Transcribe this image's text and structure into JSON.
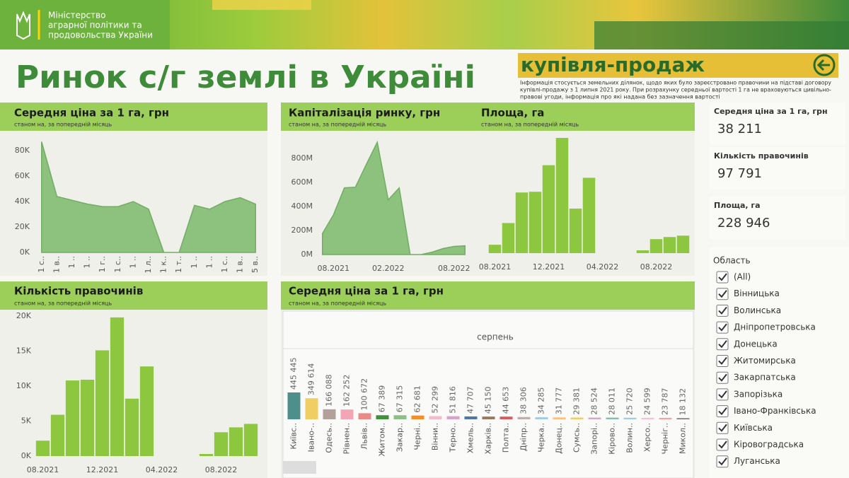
{
  "header": {
    "ministry": [
      "Міністерство",
      "аграрної політики та",
      "продовольства України"
    ],
    "title": "Ринок с/г землі в Україні"
  },
  "info": {
    "title": "купівля-продаж",
    "lines": [
      "Інформація стосується земельних ділянок, щодо яких було зареєстровано правочини на підставі договору",
      "купівлі-продажу з 1 липня 2021 року. При розрахунку середньої вартості 1 га не враховуються цивільно-",
      "правові угоди, інформація про які надана без зазначення вартості"
    ]
  },
  "chart_data": [
    {
      "type": "area",
      "title": "Середня ціна за 1 га, грн",
      "subtitle": "станом на, за попередній місяць",
      "categories": [
        "1 с..",
        "1 в..",
        "1 ..",
        "1 ..",
        "1 г..",
        "1 с..",
        "1 ..",
        "1 л..",
        "1 к..",
        "1 т..",
        "1 ..",
        "1 ..",
        "1 с..",
        "1 в..",
        "5 в.."
      ],
      "values": [
        87000,
        44000,
        41000,
        38000,
        36000,
        36000,
        40000,
        34000,
        0,
        0,
        37000,
        34000,
        40000,
        43000,
        38000
      ],
      "color": "#8cc17e",
      "ylim": [
        0,
        90000
      ],
      "yticks": [
        {
          "value": 0,
          "label": "0K"
        },
        {
          "value": 20000,
          "label": "20K"
        },
        {
          "value": 40000,
          "label": "40K"
        },
        {
          "value": 60000,
          "label": "60K"
        },
        {
          "value": 80000,
          "label": "80K"
        }
      ]
    },
    {
      "type": "area",
      "title": "Капіталізація ринку, грн",
      "subtitle": "станом на, за попередній місяць",
      "categories": [
        null,
        "08.2021",
        null,
        null,
        null,
        null,
        "02.2022",
        null,
        null,
        null,
        null,
        null,
        "08.2022",
        null
      ],
      "values": [
        175000000,
        330000000,
        555000000,
        560000000,
        750000000,
        935000000,
        455000000,
        555000000,
        0,
        0,
        20000000,
        50000000,
        68000000,
        73000000
      ],
      "color": "#8cc17e",
      "ylim": [
        0,
        1000000000
      ],
      "yticks": [
        {
          "value": 0,
          "label": "0M"
        },
        {
          "value": 200000000,
          "label": "200M"
        },
        {
          "value": 400000000,
          "label": "400M"
        },
        {
          "value": 600000000,
          "label": "600M"
        },
        {
          "value": 800000000,
          "label": "800M"
        }
      ]
    },
    {
      "type": "bar",
      "title": "Площа, га",
      "subtitle": "станом на, за попередній місяць",
      "categories": [
        "08.2021",
        null,
        null,
        null,
        "12.2021",
        null,
        null,
        null,
        "04.2022",
        null,
        null,
        null,
        "08.2022",
        null,
        null
      ],
      "values": [
        3600,
        12900,
        26000,
        26300,
        37700,
        49400,
        19100,
        32300,
        null,
        null,
        null,
        1200,
        6000,
        6900,
        7500
      ],
      "color": "#8dc63f"
    },
    {
      "type": "bar",
      "title": "Кількість правочинів",
      "subtitle": "станом на, за попередній місяць",
      "categories": [
        "08.2021",
        null,
        null,
        null,
        "12.2021",
        null,
        null,
        null,
        "04.2022",
        null,
        null,
        null,
        "08.2022",
        null,
        null
      ],
      "values": [
        2200,
        5900,
        10800,
        10900,
        15100,
        19800,
        8200,
        12800,
        null,
        null,
        null,
        300,
        3400,
        4100,
        4600
      ],
      "color": "#8dc63f",
      "ylim": [
        0,
        21000
      ],
      "yticks": [
        {
          "value": 0,
          "label": "0K"
        },
        {
          "value": 5000,
          "label": "5K"
        },
        {
          "value": 10000,
          "label": "10K"
        },
        {
          "value": 15000,
          "label": "15K"
        },
        {
          "value": 20000,
          "label": "20K"
        }
      ]
    },
    {
      "type": "bar",
      "title": "Середня ціна за 1 га, грн",
      "subtitle": "станом на, за попередній місяць",
      "header": "серпень",
      "categories": [
        "Київс..",
        "Івано-..",
        "Одесь..",
        "Рівнен..",
        "Львів..",
        "Житом..",
        "Закар..",
        "Черні..",
        "Вінни..",
        "Терно..",
        "Хмель..",
        "Харків..",
        "Полта..",
        "Дніпр..",
        "Черка..",
        "Донец..",
        "Сумсь..",
        "Запорі..",
        "Кірово..",
        "Волин..",
        "Херсо..",
        "Черніг..",
        "Микол.."
      ],
      "values": [
        445445,
        349614,
        166088,
        162252,
        100672,
        67389,
        67315,
        62681,
        52299,
        51816,
        47707,
        45150,
        44653,
        38306,
        34285,
        31777,
        29381,
        28524,
        28011,
        25720,
        24599,
        23787,
        18132
      ],
      "value_labels": [
        "445 445",
        "349 614",
        "166 088",
        "162 252",
        "100 672",
        "67 389",
        "67 315",
        "62 681",
        "52 299",
        "51 816",
        "47 707",
        "45 150",
        "44 653",
        "38 306",
        "34 285",
        "31 777",
        "29 381",
        "28 524",
        "28 011",
        "25 720",
        "24 599",
        "23 787",
        "18 132"
      ],
      "colors": [
        "#4e8f8c",
        "#f1ce63",
        "#b3a09a",
        "#f2a5b5",
        "#e98a86",
        "#3f8f3f",
        "#8cc084",
        "#f28e2b",
        "#f6b9cc",
        "#d7a4c9",
        "#4e79a7",
        "#9c755f",
        "#e15759",
        "#bab0ac",
        "#a0cbe8",
        "#ffbe7d",
        "#f1ce63",
        "#d4a6c8",
        "#86bcb6",
        "#a0cbe8",
        "#fabfd2",
        "#ff9d9a",
        "#79706e"
      ]
    }
  ],
  "kpis": [
    {
      "label": "Середня ціна за 1 га, грн",
      "value": "38 211"
    },
    {
      "label": "Кількість правочинів",
      "value": "97 791"
    },
    {
      "label": "Площа, га",
      "value": "228 946"
    }
  ],
  "filter": {
    "title": "Область",
    "items": [
      "(All)",
      "Вінницька",
      "Волинська",
      "Дніпропетровська",
      "Донецька",
      "Житомирська",
      "Закарпатська",
      "Запорізька",
      "Івано-Франківська",
      "Київська",
      "Кіровоградська",
      "Луганська"
    ]
  }
}
